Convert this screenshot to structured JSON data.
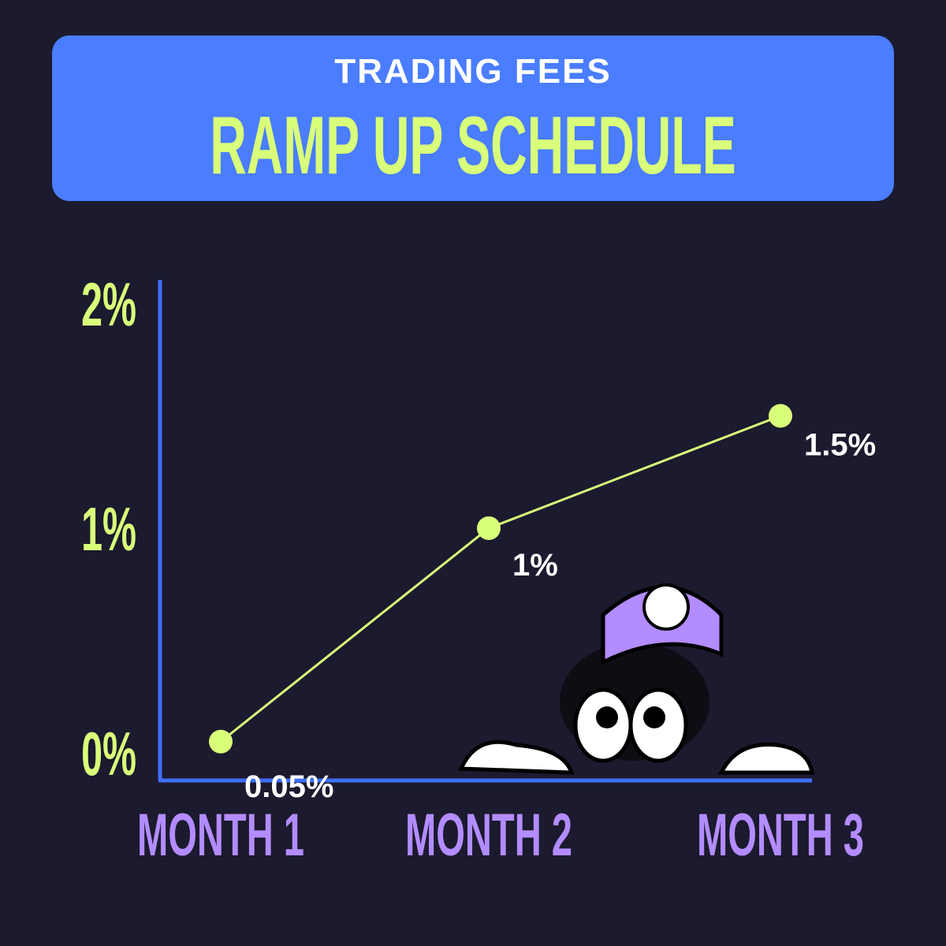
{
  "chart_data": {
    "type": "line",
    "title": "TRADING FEES",
    "subtitle": "RAMP UP SCHEDULE",
    "categories": [
      "MONTH 1",
      "MONTH 2",
      "MONTH 3"
    ],
    "values": [
      0.05,
      1,
      1.5
    ],
    "value_labels": [
      "0.05%",
      "1%",
      "1.5%"
    ],
    "color": "#d9ff7a",
    "ylim": [
      0,
      2
    ],
    "yticks": [
      {
        "value": 0,
        "label": "0%"
      },
      {
        "value": 1,
        "label": "1%"
      },
      {
        "value": 2,
        "label": "2%"
      }
    ]
  }
}
